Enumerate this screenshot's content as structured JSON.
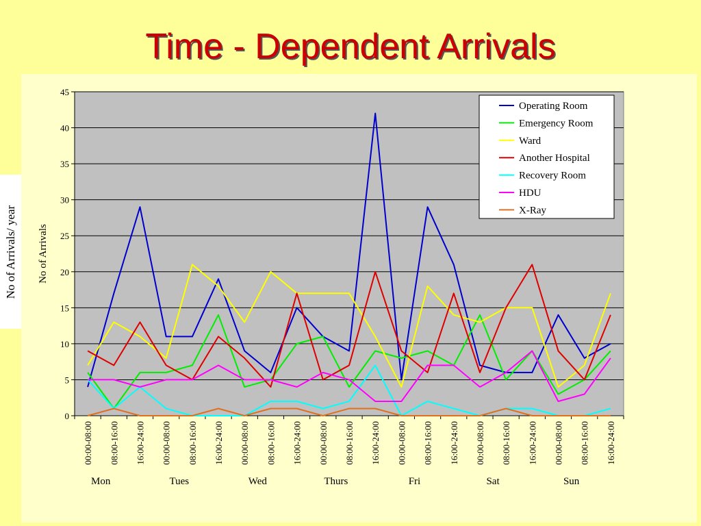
{
  "slide": {
    "title": "Time - Dependent Arrivals",
    "outer_ylabel": "No of Arrivals/ year"
  },
  "chart_data": {
    "type": "line",
    "ylabel": "No of Arrivals",
    "ylim": [
      0,
      45
    ],
    "yticks": [
      0,
      5,
      10,
      15,
      20,
      25,
      30,
      35,
      40,
      45
    ],
    "grid": true,
    "legend_position": "top-right",
    "plot_background": "#c0c0c0",
    "categories": [
      "00:00-08:00",
      "08:00-16:00",
      "16:00-24:00",
      "00:00-08:00",
      "08:00-16:00",
      "16:00-24:00",
      "00:00-08:00",
      "08:00-16:00",
      "16:00-24:00",
      "00:00-08:00",
      "08:00-16:00",
      "16:00-24:00",
      "00:00-08:00",
      "08:00-16:00",
      "16:00-24:00",
      "00:00-08:00",
      "08:00-16:00",
      "16:00-24:00",
      "00:00-08:00",
      "08:00-16:00",
      "16:00-24:00"
    ],
    "groups": [
      "Mon",
      "Tues",
      "Wed",
      "Thurs",
      "Fri",
      "Sat",
      "Sun"
    ],
    "series": [
      {
        "name": "Operating Room",
        "color": "#0000cc",
        "values": [
          4,
          17,
          29,
          11,
          11,
          19,
          9,
          6,
          15,
          11,
          9,
          42,
          5,
          29,
          21,
          7,
          6,
          6,
          14,
          8,
          10
        ]
      },
      {
        "name": "Emergency Room",
        "color": "#00ee00",
        "values": [
          6,
          1,
          6,
          6,
          7,
          14,
          4,
          5,
          10,
          11,
          4,
          9,
          8,
          9,
          7,
          14,
          5,
          9,
          3,
          5,
          9
        ]
      },
      {
        "name": "Ward",
        "color": "#ffff00",
        "values": [
          7,
          13,
          11,
          8,
          21,
          18,
          13,
          20,
          17,
          17,
          17,
          11,
          4,
          18,
          14,
          13,
          15,
          15,
          4,
          7,
          17
        ]
      },
      {
        "name": "Another Hospital",
        "color": "#dd0000",
        "values": [
          9,
          7,
          13,
          7,
          5,
          11,
          8,
          4,
          17,
          5,
          7,
          20,
          9,
          6,
          17,
          6,
          15,
          21,
          9,
          5,
          14
        ]
      },
      {
        "name": "Recovery Room",
        "color": "#00ffff",
        "values": [
          5,
          1,
          4,
          1,
          0,
          0,
          0,
          2,
          2,
          1,
          2,
          7,
          0,
          2,
          1,
          0,
          1,
          1,
          0,
          0,
          1
        ]
      },
      {
        "name": "HDU",
        "color": "#ff00ff",
        "values": [
          5,
          5,
          4,
          5,
          5,
          7,
          5,
          5,
          4,
          6,
          5,
          2,
          2,
          7,
          7,
          4,
          6,
          9,
          2,
          3,
          8
        ]
      },
      {
        "name": "X-Ray",
        "color": "#e07020",
        "values": [
          0,
          1,
          0,
          0,
          0,
          1,
          0,
          1,
          1,
          0,
          1,
          1,
          0,
          0,
          0,
          0,
          1,
          0,
          0,
          0,
          0
        ]
      }
    ]
  }
}
